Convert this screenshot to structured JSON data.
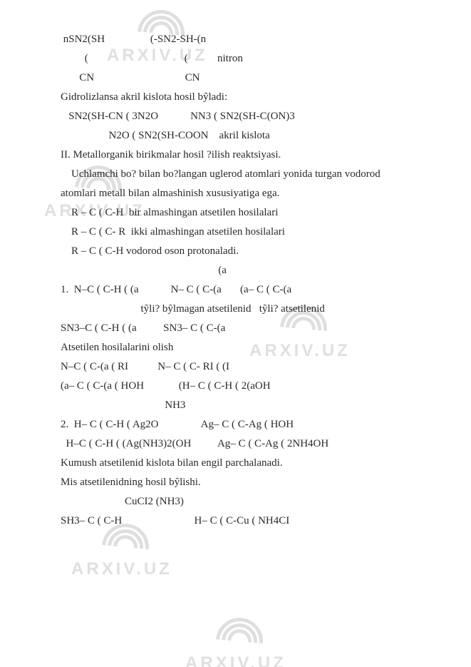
{
  "watermark": {
    "label": "ARXIV.UZ"
  },
  "lines": [
    " nSN2(SH                 (-SN2-SH-(n",
    "         (                                    (           nitron",
    "       CN                                  CN",
    "Gidrolizlansa akril kislota hosil bỹladi:",
    "   SN2(SH-CN ( 3N2O            NN3 ( SN2(SH-C(ON)3",
    "",
    "                  N2O ( SN2(SH-COON    akril kislota",
    "",
    "II. Metallorganik birikmalar hosil ?ilish reaktsiyasi.",
    "    Uchlamchi bo? bilan bo?langan uglerod atomlari yonida turgan vodorod",
    "atomlari metall bilan almashinish xususiyatiga ega.",
    "    R – C ( C-H  bir almashingan atsetilen hosilalari",
    "    R – C ( C- R  ikki almashingan atsetilen hosilalari",
    "    R – C ( C-H vodorod oson protonaladi.",
    "                                                           (a",
    "1.  N–C ( C-H ( (a            N– C ( C-(a       (a– C ( C-(a",
    "                              tỹli? bỹlmagan atsetilenid   tỹli? atsetilenid",
    "SN3–C ( C-H ( (a          SN3– C ( C-(a",
    "Atsetilen hosilalarini olish",
    "N–C ( C-(a ( RI           N– C ( C- RI ( (I",
    "(a– C ( C-(a ( HOH             (H– C ( C-H ( 2(aOH",
    "",
    "                                       NH3",
    "2.  H– C ( C-H ( Ag2O                Ag– C ( C-Ag ( HOH",
    "  H–C ( C-H ( (Ag(NH3)2(OH          Ag– C ( C-Ag ( 2NH4OH",
    "Kumush atsetilenid kislota bilan engil parchalanadi.",
    "",
    "Mis atsetilenidning hosil bỹlishi.",
    "                        CuCI2 (NH3)",
    "SH3– C ( C-H                           H– C ( C-Cu ( NH4CI"
  ]
}
